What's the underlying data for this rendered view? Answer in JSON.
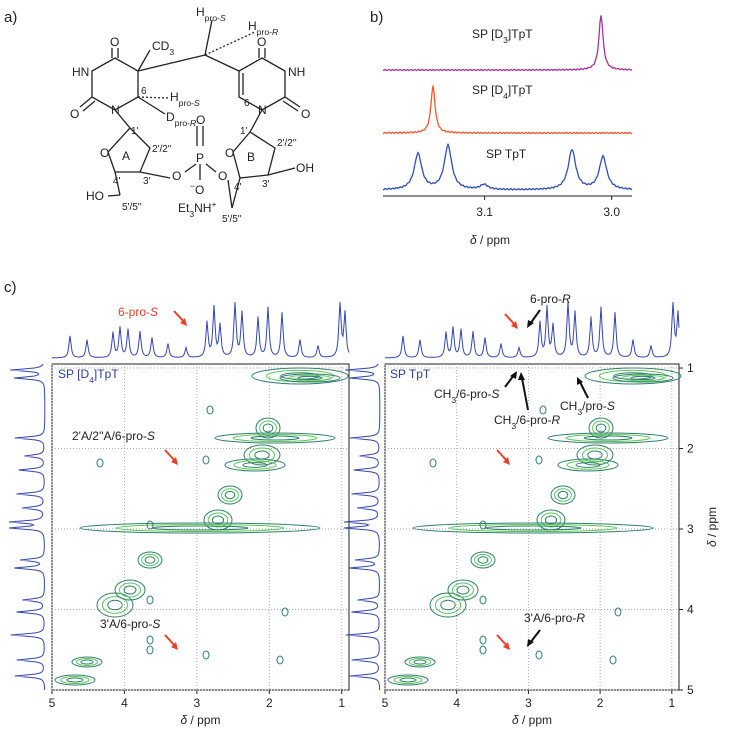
{
  "panel_a": {
    "labels": [
      {
        "parts": [
          {
            "t": "a)"
          }
        ]
      },
      {
        "parts": [
          {
            "t": "H"
          },
          {
            "t": "pro-",
            "sub": true
          },
          {
            "t": "S",
            "sub": true,
            "i": true
          }
        ]
      },
      {
        "parts": [
          {
            "t": "H"
          },
          {
            "t": "pro-",
            "sub": true
          },
          {
            "t": "R",
            "sub": true,
            "i": true
          }
        ]
      },
      {
        "parts": [
          {
            "t": "CD"
          },
          {
            "t": "3",
            "sub": true
          }
        ]
      },
      {
        "parts": [
          {
            "t": "O"
          }
        ]
      },
      {
        "parts": [
          {
            "t": "HN"
          }
        ]
      },
      {
        "parts": [
          {
            "t": "O"
          }
        ]
      },
      {
        "parts": [
          {
            "t": "N"
          }
        ]
      },
      {
        "parts": [
          {
            "t": "6"
          }
        ]
      },
      {
        "parts": [
          {
            "t": "H"
          },
          {
            "t": "pro-",
            "sub": true
          },
          {
            "t": "S",
            "sub": true,
            "i": true
          }
        ]
      },
      {
        "parts": [
          {
            "t": "D"
          },
          {
            "t": "pro-",
            "sub": true
          },
          {
            "t": "R",
            "sub": true,
            "i": true
          }
        ]
      },
      {
        "parts": [
          {
            "t": "1'"
          }
        ]
      },
      {
        "parts": [
          {
            "t": "O"
          }
        ]
      },
      {
        "parts": [
          {
            "t": "A"
          }
        ]
      },
      {
        "parts": [
          {
            "t": "2'/2''"
          }
        ]
      },
      {
        "parts": [
          {
            "t": "3'"
          }
        ]
      },
      {
        "parts": [
          {
            "t": "4'"
          }
        ]
      },
      {
        "parts": [
          {
            "t": "HO"
          }
        ]
      },
      {
        "parts": [
          {
            "t": "5'/5''"
          }
        ]
      },
      {
        "parts": [
          {
            "t": "O"
          }
        ]
      },
      {
        "parts": [
          {
            "t": "P"
          }
        ]
      },
      {
        "parts": [
          {
            "t": "O"
          }
        ]
      },
      {
        "parts": [
          {
            "t": "O"
          }
        ]
      },
      {
        "parts": [
          {
            "t": "−",
            "sup": true
          },
          {
            "t": "O"
          }
        ]
      },
      {
        "parts": [
          {
            "t": "Et"
          },
          {
            "t": "3",
            "sub": true
          },
          {
            "t": "NH"
          },
          {
            "t": "+",
            "sup": true
          }
        ]
      },
      {
        "parts": [
          {
            "t": "O"
          }
        ]
      },
      {
        "parts": [
          {
            "t": "NH"
          }
        ]
      },
      {
        "parts": [
          {
            "t": "O"
          }
        ]
      },
      {
        "parts": [
          {
            "t": "N"
          }
        ]
      },
      {
        "parts": [
          {
            "t": "6"
          }
        ]
      },
      {
        "parts": [
          {
            "t": "1'"
          }
        ]
      },
      {
        "parts": [
          {
            "t": "O"
          }
        ]
      },
      {
        "parts": [
          {
            "t": "B"
          }
        ]
      },
      {
        "parts": [
          {
            "t": "2'/2''"
          }
        ]
      },
      {
        "parts": [
          {
            "t": "3'"
          }
        ]
      },
      {
        "parts": [
          {
            "t": "OH"
          }
        ]
      },
      {
        "parts": [
          {
            "t": "4'"
          }
        ]
      },
      {
        "parts": [
          {
            "t": "5'/5''"
          }
        ]
      }
    ]
  },
  "panel_b": {
    "label": {
      "parts": [
        {
          "t": "b)"
        }
      ]
    },
    "spectra": [
      {
        "parts": [
          {
            "t": "SP [D"
          },
          {
            "t": "3",
            "sub": true
          },
          {
            "t": "]TpT"
          }
        ]
      },
      {
        "parts": [
          {
            "t": "SP [D"
          },
          {
            "t": "4",
            "sub": true
          },
          {
            "t": "]TpT"
          }
        ]
      },
      {
        "parts": [
          {
            "t": "SP TpT"
          }
        ]
      }
    ],
    "x_label": {
      "parts": [
        {
          "t": "δ",
          "i": true
        },
        {
          "t": " / ppm"
        }
      ]
    },
    "xlim": [
      3.18,
      2.984
    ],
    "xticks": [
      3.1,
      {
        "value": 3,
        "label": "3.0"
      }
    ]
  },
  "panel_c": {
    "label": {
      "parts": [
        {
          "t": "c)"
        }
      ]
    },
    "xlim": [
      5,
      0.9
    ],
    "ylim": [
      0.95,
      5
    ],
    "xticks": [
      5,
      4,
      3,
      2,
      1
    ],
    "yticks": [
      1,
      2,
      3,
      4,
      5
    ],
    "grid": true,
    "x_label": {
      "parts": [
        {
          "t": "δ",
          "i": true
        },
        {
          "t": " / ppm"
        }
      ]
    },
    "y_label": {
      "parts": [
        {
          "t": "δ",
          "i": true
        },
        {
          "t": " / ppm"
        }
      ]
    },
    "plots": [
      {
        "title": {
          "parts": [
            {
              "t": "SP [D"
            },
            {
              "t": "4",
              "sub": true
            },
            {
              "t": "]TpT"
            }
          ]
        },
        "annotations": [
          {
            "parts": [
              {
                "t": "6-pro-"
              },
              {
                "t": "S",
                "i": true
              }
            ]
          },
          {
            "parts": [
              {
                "t": "2'A/2''A/6-pro-"
              },
              {
                "t": "S",
                "i": true
              }
            ]
          },
          {
            "parts": [
              {
                "t": "3'A/6-pro-"
              },
              {
                "t": "S",
                "i": true
              }
            ]
          }
        ]
      },
      {
        "title": {
          "parts": [
            {
              "t": "SP TpT"
            }
          ]
        },
        "annotations": [
          {
            "parts": [
              {
                "t": "6-pro-"
              },
              {
                "t": "R",
                "i": true
              }
            ]
          },
          {
            "parts": [
              {
                "t": "CH"
              },
              {
                "t": "3",
                "sub": true
              },
              {
                "t": "/6-pro-"
              },
              {
                "t": "S",
                "i": true
              }
            ]
          },
          {
            "parts": [
              {
                "t": "CH"
              },
              {
                "t": "3",
                "sub": true
              },
              {
                "t": "/6-pro-"
              },
              {
                "t": "R",
                "i": true
              }
            ]
          },
          {
            "parts": [
              {
                "t": "CH"
              },
              {
                "t": "3",
                "sub": true
              },
              {
                "t": "/pro-"
              },
              {
                "t": "S",
                "i": true
              }
            ]
          },
          {
            "parts": [
              {
                "t": "3'A/6-pro-"
              },
              {
                "t": "R",
                "i": true
              }
            ]
          }
        ]
      }
    ]
  }
}
